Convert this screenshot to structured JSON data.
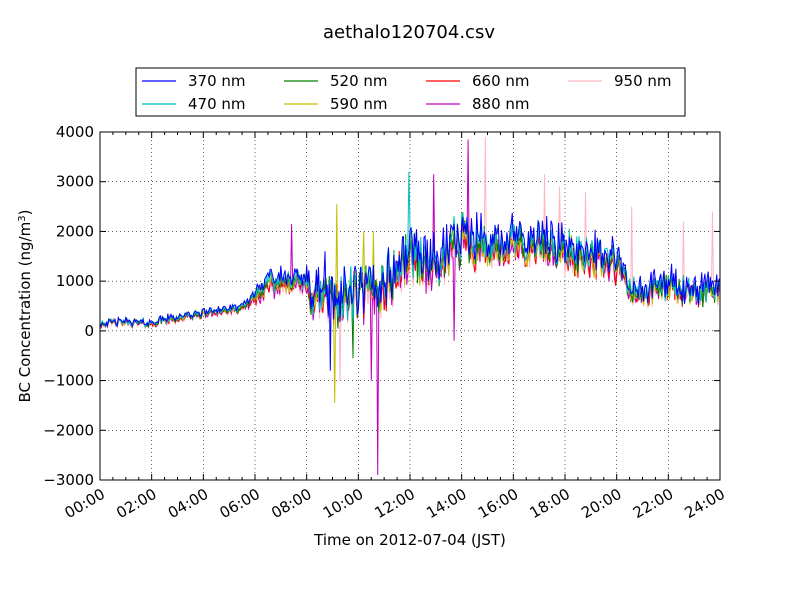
{
  "chart_data": {
    "type": "line",
    "title": "aethalo120704.csv",
    "xlabel": "Time on 2012-07-04 (JST)",
    "ylabel": "BC Concentration (ng/m",
    "ylabel_sup": "3",
    "ylabel_close": ")",
    "xlim": [
      0,
      24
    ],
    "ylim": [
      -3000,
      4000
    ],
    "x_unit": "hours",
    "xticks": [
      0,
      2,
      4,
      6,
      8,
      10,
      12,
      14,
      16,
      18,
      20,
      22,
      24
    ],
    "xtick_labels": [
      "00:00",
      "02:00",
      "04:00",
      "06:00",
      "08:00",
      "10:00",
      "12:00",
      "14:00",
      "16:00",
      "18:00",
      "20:00",
      "22:00",
      "24:00"
    ],
    "yticks": [
      -3000,
      -2000,
      -1000,
      0,
      1000,
      2000,
      3000,
      4000
    ],
    "ytick_labels": [
      "−3000",
      "−2000",
      "−1000",
      "0",
      "1000",
      "2000",
      "3000",
      "4000"
    ],
    "grid": true,
    "grid_style": "dotted",
    "legend_placement": "top-center-outside",
    "series": [
      {
        "name": "370 nm",
        "color": "#0000ff",
        "offset": 1.1
      },
      {
        "name": "470 nm",
        "color": "#00bfbf",
        "offset": 1.05
      },
      {
        "name": "520 nm",
        "color": "#008000",
        "offset": 1.0
      },
      {
        "name": "590 nm",
        "color": "#bfbf00",
        "offset": 0.97
      },
      {
        "name": "660 nm",
        "color": "#ff0000",
        "offset": 0.95
      },
      {
        "name": "880 nm",
        "color": "#bf00bf",
        "offset": 0.92
      },
      {
        "name": "950 nm",
        "color": "#ffb6c1",
        "offset": 0.9
      }
    ],
    "base_trend": {
      "x": [
        0,
        0.5,
        1,
        1.5,
        2,
        2.5,
        3,
        3.5,
        4,
        4.5,
        5,
        5.5,
        6,
        6.5,
        7,
        7.5,
        8,
        8.5,
        9,
        9.5,
        10,
        10.5,
        11,
        11.5,
        12,
        12.5,
        13,
        13.5,
        14,
        14.5,
        15,
        15.5,
        16,
        16.5,
        17,
        17.5,
        18,
        18.5,
        19,
        19.5,
        20,
        20.5,
        21,
        21.5,
        22,
        22.5,
        23,
        23.5,
        24
      ],
      "y": [
        150,
        170,
        180,
        160,
        150,
        220,
        260,
        300,
        350,
        400,
        420,
        450,
        700,
        900,
        1000,
        1050,
        900,
        700,
        600,
        650,
        700,
        800,
        900,
        1200,
        1600,
        1400,
        1300,
        1500,
        1900,
        1800,
        1700,
        1600,
        1800,
        1700,
        1800,
        1650,
        1600,
        1500,
        1550,
        1400,
        1350,
        800,
        750,
        850,
        950,
        800,
        700,
        850,
        750
      ]
    },
    "spikes": [
      {
        "x": 7.4,
        "y": 2150,
        "series": "880 nm"
      },
      {
        "x": 8.9,
        "y": -800,
        "series": "370 nm"
      },
      {
        "x": 8.7,
        "y": 1600,
        "series": "370 nm"
      },
      {
        "x": 9.15,
        "y": 2550,
        "series": "590 nm"
      },
      {
        "x": 9.1,
        "y": -1450,
        "series": "590 nm"
      },
      {
        "x": 9.3,
        "y": -1000,
        "series": "950 nm"
      },
      {
        "x": 9.8,
        "y": -550,
        "series": "520 nm"
      },
      {
        "x": 10.2,
        "y": 2000,
        "series": "590 nm"
      },
      {
        "x": 10.5,
        "y": -1000,
        "series": "880 nm"
      },
      {
        "x": 10.75,
        "y": -2900,
        "series": "880 nm"
      },
      {
        "x": 10.6,
        "y": 2000,
        "series": "590 nm"
      },
      {
        "x": 11.95,
        "y": 3200,
        "series": "470 nm"
      },
      {
        "x": 12.9,
        "y": 3150,
        "series": "880 nm"
      },
      {
        "x": 13.7,
        "y": -200,
        "series": "880 nm"
      },
      {
        "x": 14.25,
        "y": 3850,
        "series": "880 nm"
      },
      {
        "x": 14.9,
        "y": 3900,
        "series": "950 nm"
      },
      {
        "x": 17.2,
        "y": 3150,
        "series": "950 nm"
      },
      {
        "x": 17.8,
        "y": 2900,
        "series": "950 nm"
      },
      {
        "x": 18.8,
        "y": 2800,
        "series": "950 nm"
      },
      {
        "x": 20.6,
        "y": 2500,
        "series": "950 nm"
      },
      {
        "x": 22.6,
        "y": 2200,
        "series": "950 nm"
      },
      {
        "x": 23.7,
        "y": 2400,
        "series": "950 nm"
      }
    ]
  }
}
